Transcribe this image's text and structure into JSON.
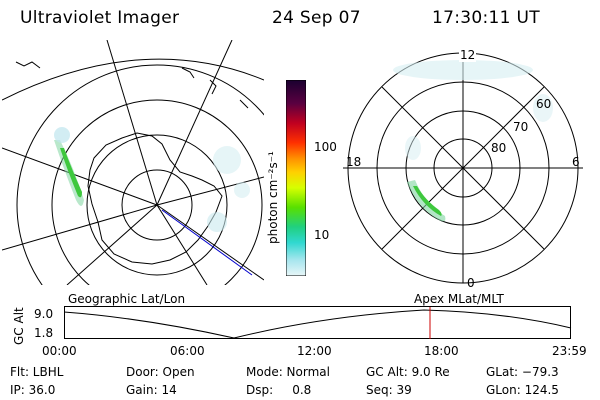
{
  "header": {
    "title": "Ultraviolet Imager",
    "date": "24 Sep 07",
    "time": "17:30:11 UT"
  },
  "colorbar": {
    "unit_label": "photon cm⁻²s⁻¹",
    "ticks": [
      "100",
      "10"
    ]
  },
  "polar_plot": {
    "mlt_labels": {
      "top": "12",
      "left": "18",
      "right": "6",
      "bottom": "0"
    },
    "lat_labels": [
      "60",
      "70",
      "80"
    ]
  },
  "timeline": {
    "left_label": "Geographic Lat/Lon",
    "right_label": "Apex MLat/MLT",
    "y_axis_label": "GC Alt",
    "y_ticks": [
      "9.0",
      "1.8"
    ],
    "x_ticks": [
      "00:00",
      "06:00",
      "12:00",
      "18:00",
      "23:59"
    ]
  },
  "status": {
    "row1": [
      {
        "key": "flt",
        "text": "Flt: LBHL"
      },
      {
        "key": "door",
        "text": "Door: Open"
      },
      {
        "key": "mode",
        "text": "Mode: Normal"
      },
      {
        "key": "gcalt",
        "text": "GC Alt: 9.0 Re"
      },
      {
        "key": "glat",
        "text": "GLat: −79.3"
      }
    ],
    "row2": [
      {
        "key": "ip",
        "text": "IP: 36.0"
      },
      {
        "key": "gain",
        "text": "Gain: 14"
      },
      {
        "key": "dsp",
        "text": "Dsp:     0.8"
      },
      {
        "key": "seq",
        "text": "Seq: 39"
      },
      {
        "key": "glon",
        "text": "GLon: 124.5"
      }
    ]
  },
  "colors": {
    "marker": "#cc0000",
    "track": "#0000cc"
  }
}
